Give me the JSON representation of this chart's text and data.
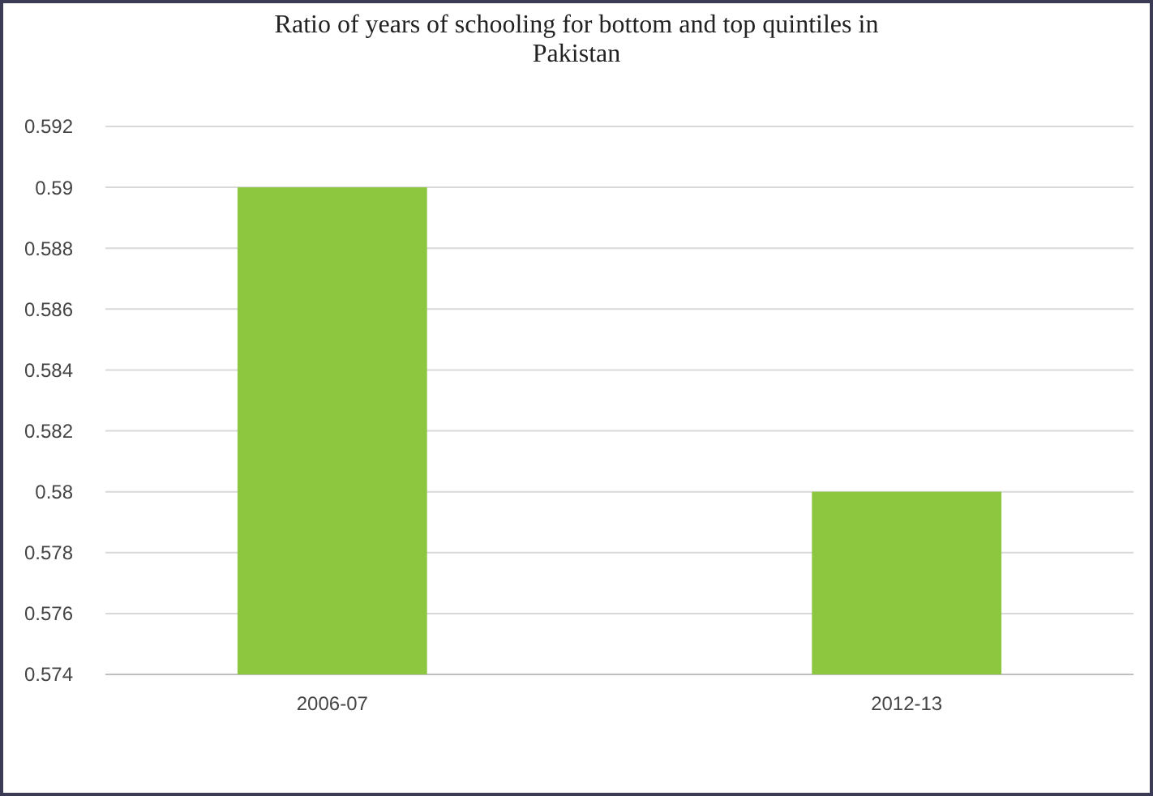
{
  "chart_data": {
    "type": "bar",
    "title": "Ratio of years of schooling for bottom and top quintiles in Pakistan",
    "categories": [
      "2006-07",
      "2012-13"
    ],
    "values": [
      0.59,
      0.58
    ],
    "color": "#8dc63f",
    "ylim": [
      0.574,
      0.592
    ],
    "yticks": [
      0.574,
      0.576,
      0.578,
      0.58,
      0.582,
      0.584,
      0.586,
      0.588,
      0.59,
      0.592
    ],
    "grid": "y"
  }
}
